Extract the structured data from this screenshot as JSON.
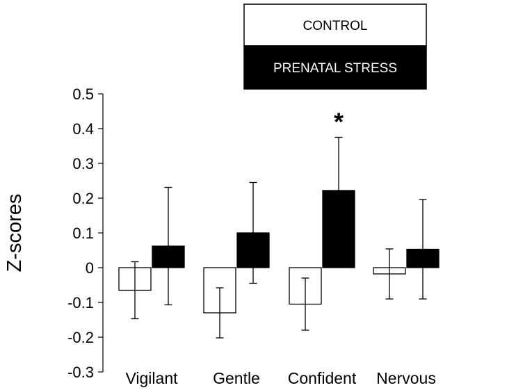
{
  "chart_data": {
    "type": "bar",
    "title": "",
    "xlabel": "",
    "ylabel": "Z-scores",
    "ylim": [
      -0.3,
      0.5
    ],
    "yticks": [
      "0.5",
      "0.4",
      "0.3",
      "0.2",
      "0.1",
      "0",
      "-0.1",
      "-0.2",
      "-0.3"
    ],
    "categories": [
      "Vigilant",
      "Gentle",
      "Confident",
      "Nervous"
    ],
    "series": [
      {
        "name": "CONTROL",
        "fill": "#ffffff",
        "values": [
          -0.065,
          -0.13,
          -0.105,
          -0.018
        ],
        "errors": [
          0.082,
          0.072,
          0.075,
          0.072
        ]
      },
      {
        "name": "PRENATAL STRESS",
        "fill": "#000000",
        "values": [
          0.062,
          0.1,
          0.222,
          0.053
        ],
        "errors": [
          0.169,
          0.145,
          0.153,
          0.143
        ]
      }
    ],
    "annotations": [
      {
        "text": "*",
        "category": "Confident",
        "series": "PRENATAL STRESS"
      }
    ],
    "legend": {
      "position": "top-center",
      "items": [
        {
          "label": "CONTROL",
          "fill": "#ffffff",
          "text_color": "#000000"
        },
        {
          "label": "PRENATAL STRESS",
          "fill": "#000000",
          "text_color": "#ffffff"
        }
      ]
    }
  }
}
